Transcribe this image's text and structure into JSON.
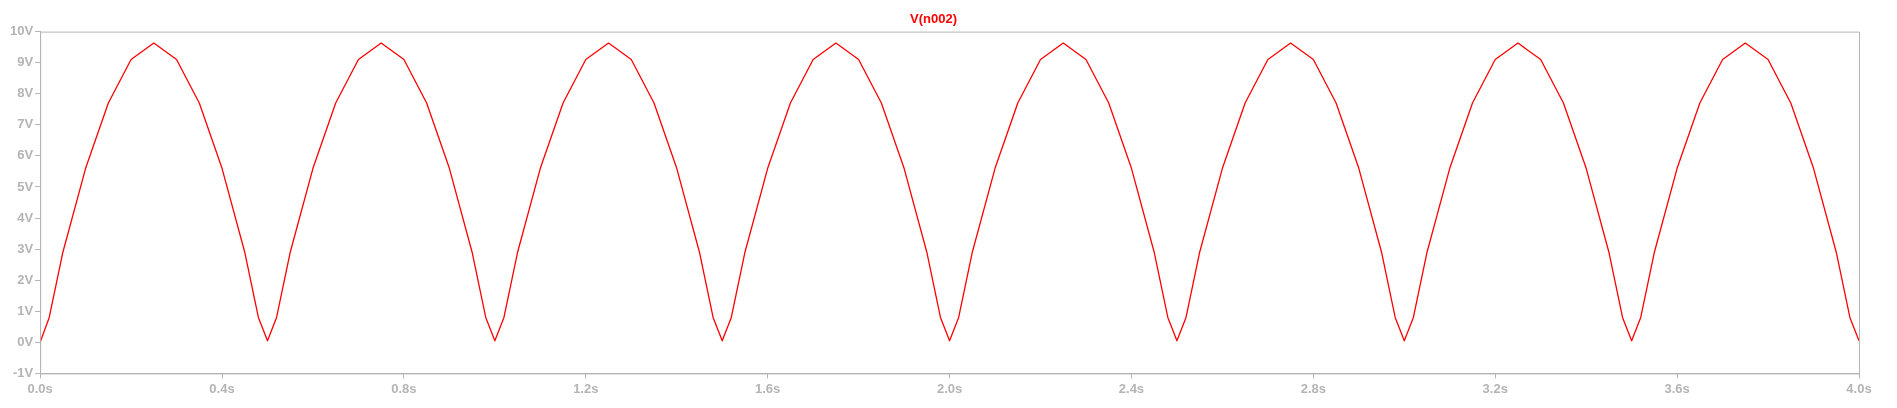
{
  "chart_data": {
    "type": "line",
    "title": "V(n002)",
    "x": [
      0,
      0.02,
      0.05,
      0.1,
      0.15,
      0.2,
      0.25,
      0.3,
      0.35,
      0.4,
      0.45,
      0.48,
      0.5,
      0.52,
      0.55,
      0.6,
      0.65,
      0.7,
      0.75,
      0.8,
      0.85,
      0.9,
      0.95,
      0.98,
      1.0,
      1.02,
      1.05,
      1.1,
      1.15,
      1.2,
      1.25,
      1.3,
      1.35,
      1.4,
      1.45,
      1.48,
      1.5,
      1.52,
      1.55,
      1.6,
      1.65,
      1.7,
      1.75,
      1.8,
      1.85,
      1.9,
      1.95,
      1.98,
      2.0,
      2.02,
      2.05,
      2.1,
      2.15,
      2.2,
      2.25,
      2.3,
      2.35,
      2.4,
      2.45,
      2.48,
      2.5,
      2.52,
      2.55,
      2.6,
      2.65,
      2.7,
      2.75,
      2.8,
      2.85,
      2.9,
      2.95,
      2.98,
      3.0,
      3.02,
      3.05,
      3.1,
      3.15,
      3.2,
      3.25,
      3.3,
      3.35,
      3.4,
      3.45,
      3.48,
      3.5,
      3.52,
      3.55,
      3.6,
      3.65,
      3.7,
      3.75,
      3.8,
      3.85,
      3.9,
      3.95,
      3.98,
      4.0
    ],
    "series": [
      {
        "color": "#ff0000",
        "values": [
          0,
          0.8,
          2.9,
          5.6,
          7.7,
          9.1,
          9.63,
          9.1,
          7.7,
          5.6,
          2.9,
          0.8,
          0.05,
          0.8,
          2.9,
          5.6,
          7.7,
          9.1,
          9.63,
          9.1,
          7.7,
          5.6,
          2.9,
          0.8,
          0.05,
          0.8,
          2.9,
          5.6,
          7.7,
          9.1,
          9.63,
          9.1,
          7.7,
          5.6,
          2.9,
          0.8,
          0.05,
          0.8,
          2.9,
          5.6,
          7.7,
          9.1,
          9.63,
          9.1,
          7.7,
          5.6,
          2.9,
          0.8,
          0.05,
          0.8,
          2.9,
          5.6,
          7.7,
          9.1,
          9.63,
          9.1,
          7.7,
          5.6,
          2.9,
          0.8,
          0.05,
          0.8,
          2.9,
          5.6,
          7.7,
          9.1,
          9.63,
          9.1,
          7.7,
          5.6,
          2.9,
          0.8,
          0.05,
          0.8,
          2.9,
          5.6,
          7.7,
          9.1,
          9.63,
          9.1,
          7.7,
          5.6,
          2.9,
          0.8,
          0.05,
          0.8,
          2.9,
          5.6,
          7.7,
          9.1,
          9.63,
          9.1,
          7.7,
          5.6,
          2.9,
          0.8,
          0.05
        ]
      }
    ],
    "xlim": [
      0,
      4.0
    ],
    "xticks": [
      {
        "value": 0,
        "label": "0.0s"
      },
      {
        "value": 0.4,
        "label": "0.4s"
      },
      {
        "value": 0.8,
        "label": "0.8s"
      },
      {
        "value": 1.2,
        "label": "1.2s"
      },
      {
        "value": 1.6,
        "label": "1.6s"
      },
      {
        "value": 2.0,
        "label": "2.0s"
      },
      {
        "value": 2.4,
        "label": "2.4s"
      },
      {
        "value": 2.8,
        "label": "2.8s"
      },
      {
        "value": 3.2,
        "label": "3.2s"
      },
      {
        "value": 3.6,
        "label": "3.6s"
      },
      {
        "value": 4.0,
        "label": "4.0s"
      }
    ],
    "ylim": [
      -1,
      10
    ],
    "yticks": [
      {
        "value": -1,
        "label": "-1V"
      },
      {
        "value": 0,
        "label": "0V"
      },
      {
        "value": 1,
        "label": "1V"
      },
      {
        "value": 2,
        "label": "2V"
      },
      {
        "value": 3,
        "label": "3V"
      },
      {
        "value": 4,
        "label": "4V"
      },
      {
        "value": 5,
        "label": "5V"
      },
      {
        "value": 6,
        "label": "6V"
      },
      {
        "value": 7,
        "label": "7V"
      },
      {
        "value": 8,
        "label": "8V"
      },
      {
        "value": 9,
        "label": "9V"
      },
      {
        "value": 10,
        "label": "10V"
      }
    ],
    "grid": false,
    "legend": false,
    "marker": "none",
    "line_style": "solid"
  }
}
